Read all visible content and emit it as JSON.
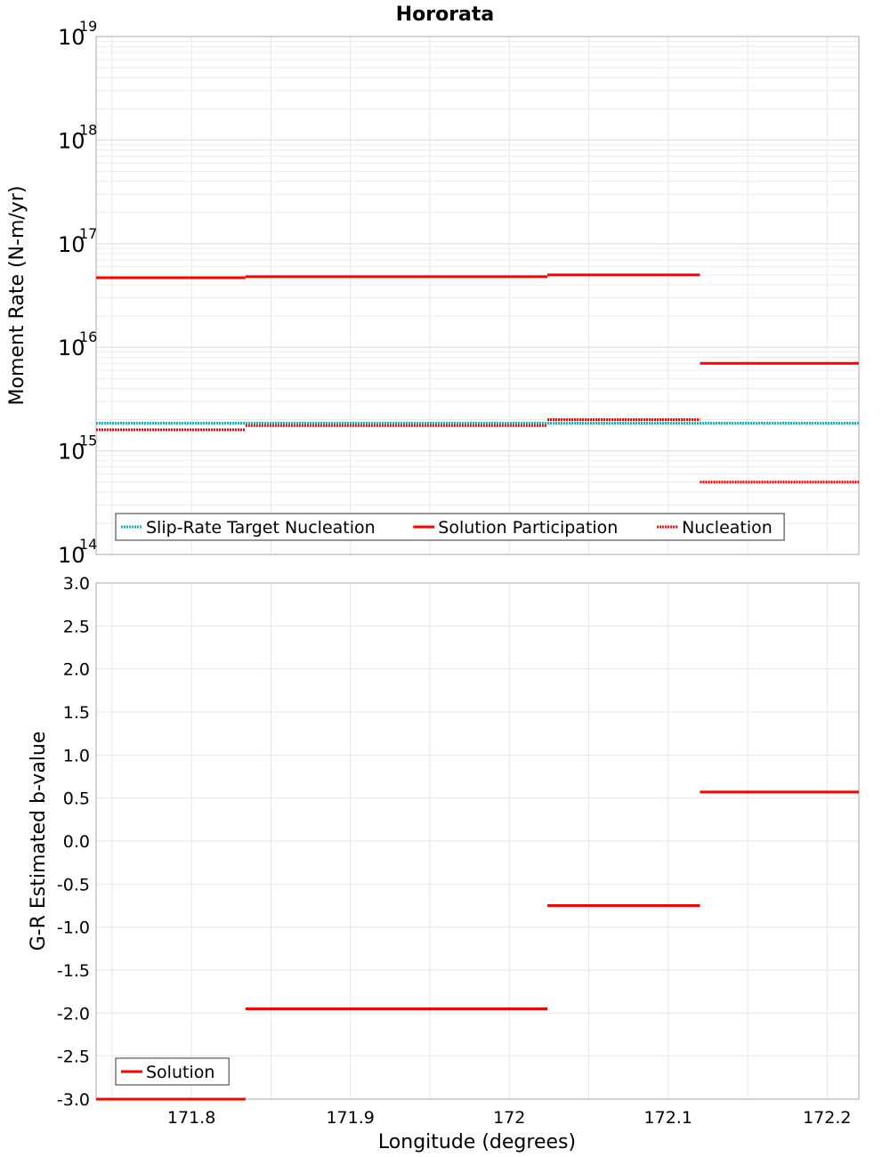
{
  "chart_data": {
    "type": "line",
    "title": "Hororata",
    "xlabel": "Longitude (degrees)",
    "xlim": [
      171.74,
      172.22
    ],
    "xticks": [
      171.8,
      171.9,
      172.0,
      172.1,
      172.2
    ],
    "xtick_labels": [
      "171.8",
      "171.9",
      "172",
      "172.1",
      "172.2"
    ],
    "grid": true,
    "panels": [
      {
        "id": "moment-rate",
        "ylabel": "Moment Rate (N-m/yr)",
        "yscale": "log",
        "ylim": [
          100000000000000.0,
          1e+19
        ],
        "ytick_base": "10",
        "ytick_exponents": [
          "14",
          "15",
          "16",
          "17",
          "18",
          "19"
        ],
        "legend_position": "bottom-left",
        "series": [
          {
            "name": "Slip-Rate Target Nucleation",
            "style": "dotted",
            "color": "#1fb5b5",
            "segments": [
              {
                "x0": 171.74,
                "x1": 172.22,
                "y": 1850000000000000.0
              }
            ]
          },
          {
            "name": "Solution Participation",
            "style": "solid",
            "color": "#ff0000",
            "segments": [
              {
                "x0": 171.74,
                "x1": 171.834,
                "y": 4.7e+16
              },
              {
                "x0": 171.834,
                "x1": 172.024,
                "y": 4.8e+16
              },
              {
                "x0": 172.024,
                "x1": 172.12,
                "y": 5e+16
              },
              {
                "x0": 172.12,
                "x1": 172.22,
                "y": 7000000000000000.0
              }
            ]
          },
          {
            "name": "Nucleation",
            "style": "dotted",
            "color": "#ff0000",
            "segments": [
              {
                "x0": 171.74,
                "x1": 171.834,
                "y": 1600000000000000.0
              },
              {
                "x0": 171.834,
                "x1": 172.024,
                "y": 1750000000000000.0
              },
              {
                "x0": 172.024,
                "x1": 172.12,
                "y": 2000000000000000.0
              },
              {
                "x0": 172.12,
                "x1": 172.22,
                "y": 500000000000000.0
              }
            ]
          }
        ]
      },
      {
        "id": "b-value",
        "ylabel": "G-R Estimated b-value",
        "yscale": "linear",
        "ylim": [
          -3.0,
          3.0
        ],
        "yticks": [
          -3.0,
          -2.5,
          -2.0,
          -1.5,
          -1.0,
          -0.5,
          0.0,
          0.5,
          1.0,
          1.5,
          2.0,
          2.5,
          3.0
        ],
        "ytick_labels": [
          "-3.0",
          "-2.5",
          "-2.0",
          "-1.5",
          "-1.0",
          "-0.5",
          "0.0",
          "0.5",
          "1.0",
          "1.5",
          "2.0",
          "2.5",
          "3.0"
        ],
        "legend_position": "bottom-left",
        "series": [
          {
            "name": "Solution",
            "style": "solid",
            "color": "#ff0000",
            "segments": [
              {
                "x0": 171.74,
                "x1": 171.834,
                "y": -3.0
              },
              {
                "x0": 171.834,
                "x1": 172.024,
                "y": -1.95
              },
              {
                "x0": 172.024,
                "x1": 172.12,
                "y": -0.75
              },
              {
                "x0": 172.12,
                "x1": 172.22,
                "y": 0.57
              }
            ]
          }
        ]
      }
    ]
  }
}
